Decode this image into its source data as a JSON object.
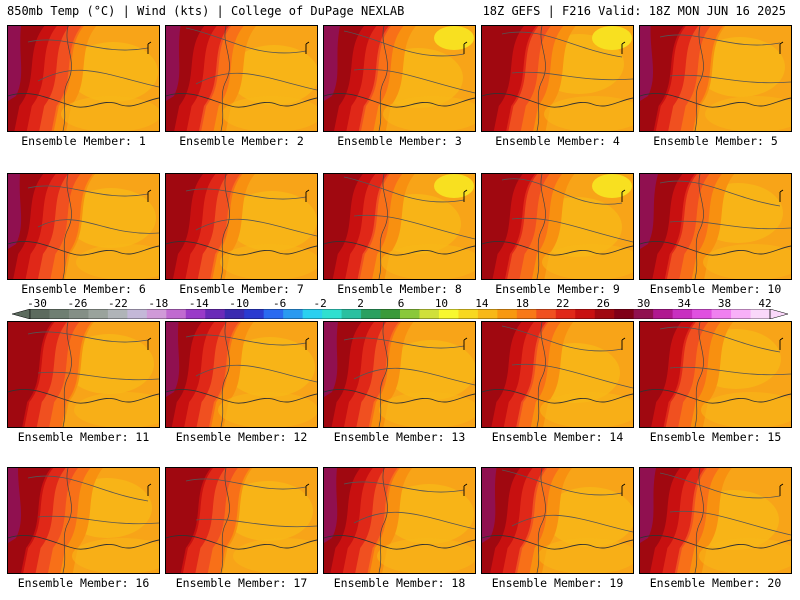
{
  "header": {
    "left": "850mb Temp (°C) | Wind (kts) | College of DuPage NEXLAB",
    "right": "18Z GEFS | F216 Valid: 18Z MON JUN 16 2025"
  },
  "members": [
    {
      "label": "Ensemble Member: 1"
    },
    {
      "label": "Ensemble Member: 2"
    },
    {
      "label": "Ensemble Member: 3"
    },
    {
      "label": "Ensemble Member: 4"
    },
    {
      "label": "Ensemble Member: 5"
    },
    {
      "label": "Ensemble Member: 6"
    },
    {
      "label": "Ensemble Member: 7"
    },
    {
      "label": "Ensemble Member: 8"
    },
    {
      "label": "Ensemble Member: 9"
    },
    {
      "label": "Ensemble Member: 10"
    },
    {
      "label": "Ensemble Member: 11"
    },
    {
      "label": "Ensemble Member: 12"
    },
    {
      "label": "Ensemble Member: 13"
    },
    {
      "label": "Ensemble Member: 14"
    },
    {
      "label": "Ensemble Member: 15"
    },
    {
      "label": "Ensemble Member: 16"
    },
    {
      "label": "Ensemble Member: 17"
    },
    {
      "label": "Ensemble Member: 18"
    },
    {
      "label": "Ensemble Member: 19"
    },
    {
      "label": "Ensemble Member: 20"
    }
  ],
  "colorbar": {
    "tick_labels": [
      "-30",
      "-26",
      "-22",
      "-18",
      "-14",
      "-10",
      "-6",
      "-2",
      "2",
      "6",
      "10",
      "14",
      "18",
      "22",
      "26",
      "30",
      "34",
      "38",
      "42"
    ],
    "colors": [
      "#5c6b5e",
      "#6f7f72",
      "#848f86",
      "#9aa39c",
      "#b0b4b8",
      "#c4b8d8",
      "#d09ad8",
      "#c06ad0",
      "#9a3ac8",
      "#6a2ab8",
      "#3a2ab0",
      "#2a3ad0",
      "#2a6af0",
      "#2a9af0",
      "#2ad0f0",
      "#30e0d0",
      "#2ac0a0",
      "#2aa060",
      "#3a9a3a",
      "#8ac83a",
      "#d0e03a",
      "#f8f830",
      "#f8d820",
      "#f8b818",
      "#f89810",
      "#f87818",
      "#f05020",
      "#e02818",
      "#c81010",
      "#a00810",
      "#800018",
      "#901050",
      "#b01890",
      "#c830c0",
      "#e050e0",
      "#f080f0",
      "#f8b0f8",
      "#fad8fa"
    ]
  }
}
